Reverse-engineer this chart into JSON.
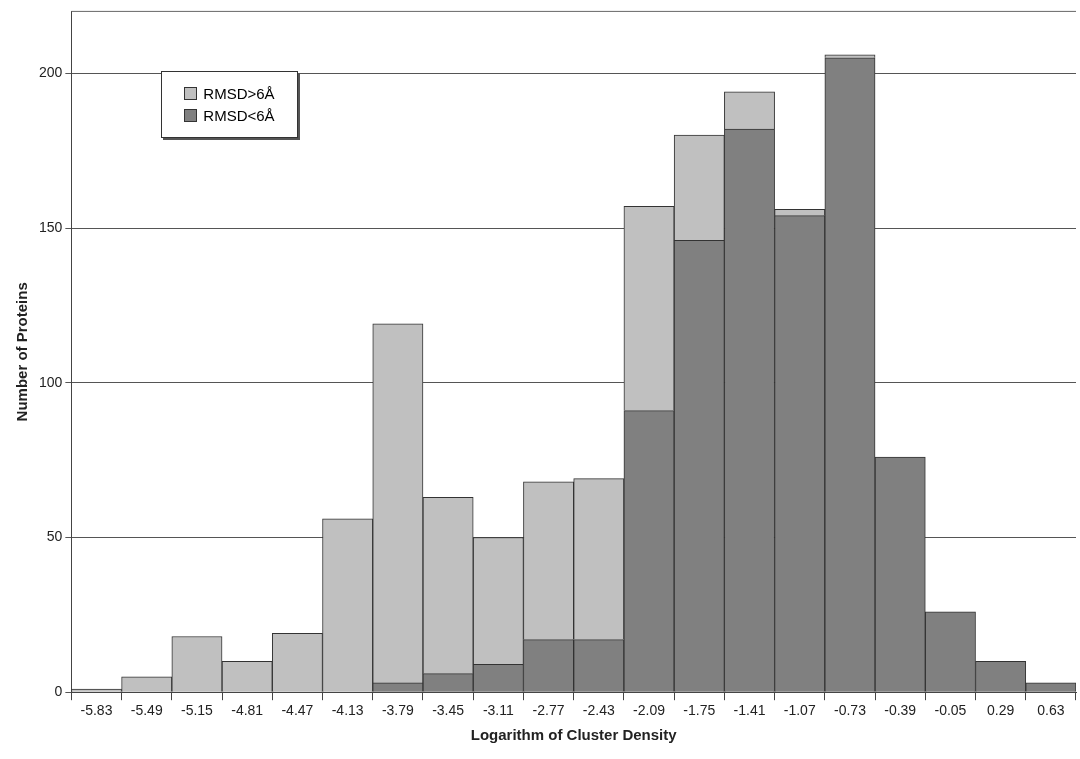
{
  "chart_data": {
    "type": "bar",
    "stacked": true,
    "xlabel": "Logarithm of Cluster Density",
    "ylabel": "Number of Proteins",
    "categories": [
      "-5.83",
      "-5.49",
      "-5.15",
      "-4.81",
      "-4.47",
      "-4.13",
      "-3.79",
      "-3.45",
      "-3.11",
      "-2.77",
      "-2.43",
      "-2.09",
      "-1.75",
      "-1.41",
      "-1.07",
      "-0.73",
      "-0.39",
      "-0.05",
      "0.29",
      "0.63"
    ],
    "series": [
      {
        "name": "RMSD<6Å",
        "color": "#808080",
        "values": [
          0,
          0,
          0,
          0,
          0,
          0,
          3,
          6,
          9,
          17,
          17,
          91,
          146,
          182,
          154,
          205,
          76,
          26,
          10,
          3
        ]
      },
      {
        "name": "RMSD>6Å",
        "color": "#c0c0c0",
        "values": [
          1,
          5,
          18,
          10,
          19,
          56,
          116,
          57,
          41,
          51,
          52,
          66,
          34,
          12,
          2,
          1,
          0,
          0,
          0,
          0
        ]
      }
    ],
    "ylim": [
      0,
      220
    ],
    "yticks": [
      0,
      50,
      100,
      150,
      200
    ],
    "grid": "y",
    "legend": "top left"
  }
}
